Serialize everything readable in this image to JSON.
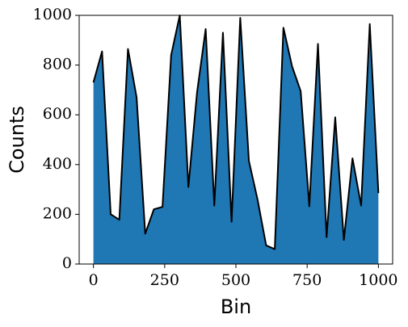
{
  "chart_data": {
    "type": "area",
    "x_label": "Bin",
    "y_label": "Counts",
    "x": [
      0,
      30.3,
      60.6,
      90.9,
      121.2,
      151.5,
      181.8,
      212.1,
      242.4,
      272.7,
      303.0,
      333.3,
      363.6,
      393.9,
      424.2,
      454.5,
      484.8,
      515.2,
      545.5,
      575.8,
      606.1,
      636.4,
      666.7,
      697.0,
      727.3,
      757.6,
      787.9,
      818.2,
      848.5,
      878.8,
      909.1,
      939.4,
      969.7,
      1000
    ],
    "values": [
      730,
      855,
      200,
      178,
      865,
      670,
      122,
      220,
      230,
      840,
      1000,
      310,
      690,
      945,
      235,
      930,
      170,
      990,
      415,
      260,
      75,
      60,
      950,
      795,
      695,
      232,
      885,
      108,
      590,
      97,
      425,
      235,
      965,
      285
    ],
    "fill_color": "#1f77b4",
    "line_color": "#000000",
    "xlim": [
      -50,
      1050
    ],
    "ylim": [
      0,
      1000
    ],
    "xticks": [
      0,
      250,
      500,
      750,
      1000
    ],
    "yticks": [
      0,
      200,
      400,
      600,
      800,
      1000
    ]
  }
}
